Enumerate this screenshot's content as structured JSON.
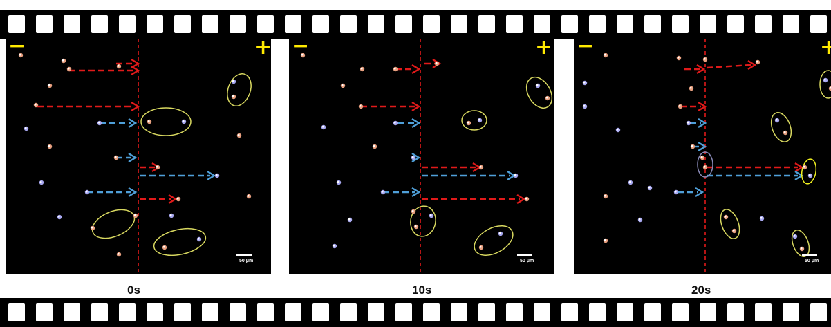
{
  "panels": [
    {
      "time_label": "0s",
      "minus_sign": "−",
      "plus_sign": "+",
      "scale_bar_label": "50 μm"
    },
    {
      "time_label": "10s",
      "minus_sign": "−",
      "plus_sign": "+",
      "scale_bar_label": "50 μm"
    },
    {
      "time_label": "20s",
      "minus_sign": "−",
      "plus_sign": "+",
      "scale_bar_label": "50 μm"
    }
  ],
  "colors": {
    "background": "#000000",
    "red_arrow": "#e01a1a",
    "blue_arrow": "#4f9fd8",
    "center_line": "#e01a1a",
    "ellipse": "#d8d860",
    "sign": "#ffea00",
    "particle_red": "#e8a080",
    "particle_blue": "#a8a8f0"
  }
}
